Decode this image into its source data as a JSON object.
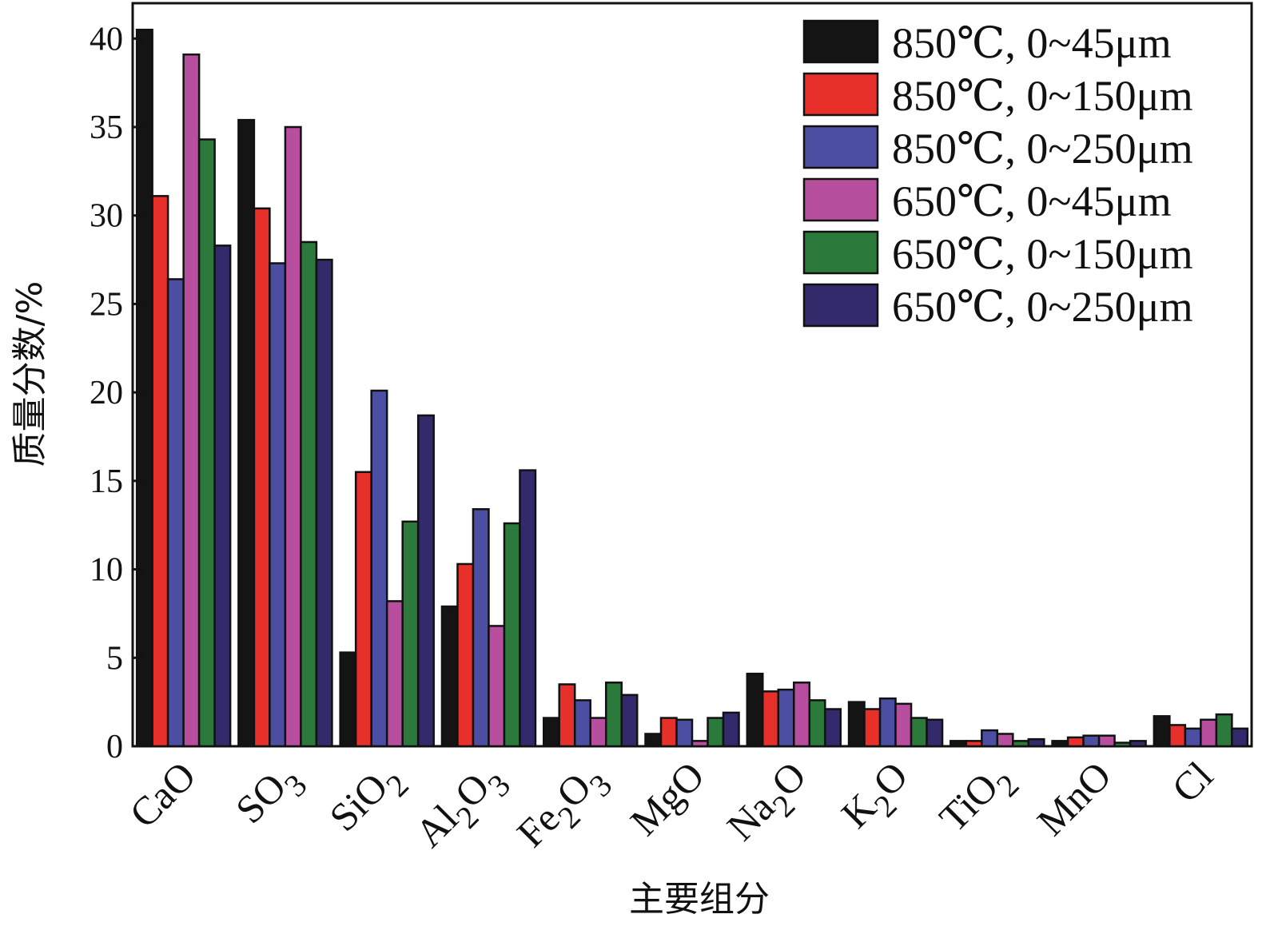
{
  "chart_data": {
    "type": "bar",
    "xlabel": "主要组分",
    "ylabel": "质量分数/%",
    "ylim": [
      0,
      42
    ],
    "yticks": [
      0,
      5,
      10,
      15,
      20,
      25,
      30,
      35,
      40
    ],
    "legend_position": "top-right",
    "categories": [
      {
        "base": "CaO",
        "sub": ""
      },
      {
        "base": "SO",
        "sub": "3"
      },
      {
        "base": "SiO",
        "sub": "2"
      },
      {
        "base": "Al",
        "sub": "2",
        "base2": "O",
        "sub2": "3"
      },
      {
        "base": "Fe",
        "sub": "2",
        "base2": "O",
        "sub2": "3"
      },
      {
        "base": "MgO",
        "sub": ""
      },
      {
        "base": "Na",
        "sub": "2",
        "base2": "O",
        "sub2": ""
      },
      {
        "base": "K",
        "sub": "2",
        "base2": "O",
        "sub2": ""
      },
      {
        "base": "TiO",
        "sub": "2"
      },
      {
        "base": "MnO",
        "sub": ""
      },
      {
        "base": "Cl",
        "sub": ""
      }
    ],
    "series": [
      {
        "name": "850℃, 0~45μm",
        "color": "#141414",
        "values": [
          40.5,
          35.4,
          5.3,
          7.9,
          1.6,
          0.7,
          4.1,
          2.5,
          0.3,
          0.3,
          1.7
        ]
      },
      {
        "name": "850℃, 0~150μm",
        "color": "#e8302a",
        "values": [
          31.1,
          30.4,
          15.5,
          10.3,
          3.5,
          1.6,
          3.1,
          2.1,
          0.3,
          0.5,
          1.2
        ]
      },
      {
        "name": "850℃, 0~250μm",
        "color": "#4c4ea2",
        "values": [
          26.4,
          27.3,
          20.1,
          13.4,
          2.6,
          1.5,
          3.2,
          2.7,
          0.9,
          0.6,
          1.0
        ]
      },
      {
        "name": "650℃, 0~45μm",
        "color": "#b84f9e",
        "values": [
          39.1,
          35.0,
          8.2,
          6.8,
          1.6,
          0.3,
          3.6,
          2.4,
          0.7,
          0.6,
          1.5
        ]
      },
      {
        "name": "650℃, 0~150μm",
        "color": "#2b7a3b",
        "values": [
          34.3,
          28.5,
          12.7,
          12.6,
          3.6,
          1.6,
          2.6,
          1.6,
          0.3,
          0.2,
          1.8
        ]
      },
      {
        "name": "650℃, 0~250μm",
        "color": "#322a6b",
        "values": [
          28.3,
          27.5,
          18.7,
          15.6,
          2.9,
          1.9,
          2.1,
          1.5,
          0.4,
          0.3,
          1.0
        ]
      }
    ]
  }
}
